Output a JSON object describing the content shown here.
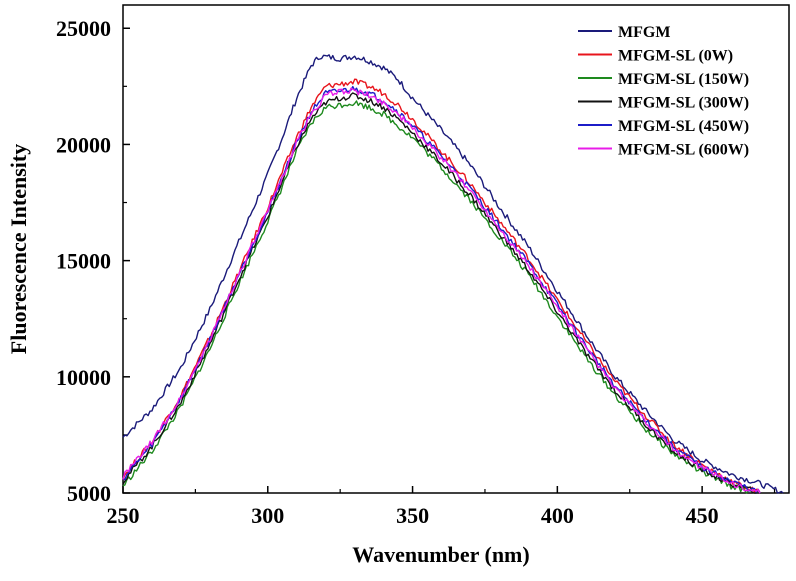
{
  "chart_data": {
    "type": "line",
    "title": "",
    "xlabel": "Wavenumber (nm)",
    "ylabel": "Fluorescence Intensity",
    "xlim": [
      250,
      480
    ],
    "ylim": [
      5000,
      26000
    ],
    "xticks": [
      250,
      300,
      350,
      400,
      450
    ],
    "yticks": [
      5000,
      10000,
      15000,
      20000,
      25000
    ],
    "grid": false,
    "legend_position": "top-right",
    "series": [
      {
        "name": "MFGM",
        "color": "#1a1a7a",
        "points": [
          [
            250,
            7400
          ],
          [
            260,
            8600
          ],
          [
            270,
            10400
          ],
          [
            280,
            12900
          ],
          [
            290,
            15800
          ],
          [
            300,
            18700
          ],
          [
            305,
            20300
          ],
          [
            310,
            22000
          ],
          [
            315,
            23400
          ],
          [
            318,
            23800
          ],
          [
            325,
            23700
          ],
          [
            330,
            23800
          ],
          [
            335,
            23600
          ],
          [
            340,
            23300
          ],
          [
            345,
            22800
          ],
          [
            350,
            22000
          ],
          [
            360,
            20600
          ],
          [
            370,
            19100
          ],
          [
            380,
            17300
          ],
          [
            390,
            15600
          ],
          [
            400,
            13700
          ],
          [
            410,
            11800
          ],
          [
            420,
            10000
          ],
          [
            430,
            8600
          ],
          [
            440,
            7300
          ],
          [
            450,
            6400
          ],
          [
            460,
            5800
          ],
          [
            470,
            5400
          ],
          [
            478,
            5000
          ]
        ]
      },
      {
        "name": "MFGM-SL (0W)",
        "color": "#e8141c",
        "points": [
          [
            250,
            5700
          ],
          [
            260,
            7200
          ],
          [
            270,
            9200
          ],
          [
            280,
            11700
          ],
          [
            290,
            14500
          ],
          [
            300,
            17300
          ],
          [
            305,
            18800
          ],
          [
            310,
            20300
          ],
          [
            315,
            21600
          ],
          [
            320,
            22500
          ],
          [
            325,
            22600
          ],
          [
            330,
            22700
          ],
          [
            335,
            22500
          ],
          [
            340,
            22200
          ],
          [
            345,
            21700
          ],
          [
            350,
            21100
          ],
          [
            360,
            19700
          ],
          [
            370,
            18300
          ],
          [
            380,
            16700
          ],
          [
            390,
            15100
          ],
          [
            400,
            13300
          ],
          [
            410,
            11500
          ],
          [
            420,
            9800
          ],
          [
            430,
            8400
          ],
          [
            440,
            7100
          ],
          [
            450,
            6200
          ],
          [
            460,
            5500
          ],
          [
            470,
            5000
          ]
        ]
      },
      {
        "name": "MFGM-SL (150W)",
        "color": "#1e8a1e",
        "points": [
          [
            250,
            5300
          ],
          [
            260,
            6800
          ],
          [
            270,
            8700
          ],
          [
            280,
            11200
          ],
          [
            290,
            14000
          ],
          [
            300,
            16700
          ],
          [
            305,
            18200
          ],
          [
            310,
            19700
          ],
          [
            315,
            20900
          ],
          [
            320,
            21600
          ],
          [
            325,
            21700
          ],
          [
            330,
            21800
          ],
          [
            335,
            21600
          ],
          [
            340,
            21300
          ],
          [
            345,
            20800
          ],
          [
            350,
            20300
          ],
          [
            360,
            19000
          ],
          [
            370,
            17600
          ],
          [
            380,
            16000
          ],
          [
            390,
            14400
          ],
          [
            400,
            12600
          ],
          [
            410,
            10800
          ],
          [
            420,
            9200
          ],
          [
            430,
            7800
          ],
          [
            440,
            6700
          ],
          [
            450,
            5900
          ],
          [
            460,
            5300
          ],
          [
            468,
            5000
          ]
        ]
      },
      {
        "name": "MFGM-SL (300W)",
        "color": "#111111",
        "points": [
          [
            250,
            5500
          ],
          [
            260,
            7000
          ],
          [
            270,
            8900
          ],
          [
            280,
            11400
          ],
          [
            290,
            14200
          ],
          [
            300,
            16900
          ],
          [
            305,
            18400
          ],
          [
            310,
            19900
          ],
          [
            315,
            21100
          ],
          [
            320,
            21800
          ],
          [
            325,
            22000
          ],
          [
            330,
            22100
          ],
          [
            335,
            21900
          ],
          [
            340,
            21600
          ],
          [
            345,
            21100
          ],
          [
            350,
            20500
          ],
          [
            360,
            19200
          ],
          [
            370,
            17800
          ],
          [
            380,
            16200
          ],
          [
            390,
            14600
          ],
          [
            400,
            12800
          ],
          [
            410,
            11000
          ],
          [
            420,
            9400
          ],
          [
            430,
            8000
          ],
          [
            440,
            6800
          ],
          [
            450,
            6000
          ],
          [
            460,
            5400
          ],
          [
            470,
            5000
          ]
        ]
      },
      {
        "name": "MFGM-SL (450W)",
        "color": "#1c1cc8",
        "points": [
          [
            250,
            5600
          ],
          [
            260,
            7100
          ],
          [
            270,
            9100
          ],
          [
            280,
            11600
          ],
          [
            290,
            14400
          ],
          [
            300,
            17100
          ],
          [
            305,
            18600
          ],
          [
            310,
            20100
          ],
          [
            315,
            21400
          ],
          [
            320,
            22200
          ],
          [
            325,
            22300
          ],
          [
            330,
            22400
          ],
          [
            335,
            22200
          ],
          [
            340,
            21900
          ],
          [
            345,
            21400
          ],
          [
            350,
            20800
          ],
          [
            360,
            19500
          ],
          [
            370,
            18100
          ],
          [
            380,
            16500
          ],
          [
            390,
            14900
          ],
          [
            400,
            13100
          ],
          [
            410,
            11300
          ],
          [
            420,
            9600
          ],
          [
            430,
            8200
          ],
          [
            440,
            7000
          ],
          [
            450,
            6100
          ],
          [
            460,
            5500
          ],
          [
            470,
            5000
          ]
        ]
      },
      {
        "name": "MFGM-SL (600W)",
        "color": "#e81ce8",
        "points": [
          [
            250,
            5700
          ],
          [
            260,
            7200
          ],
          [
            270,
            9100
          ],
          [
            280,
            11600
          ],
          [
            290,
            14400
          ],
          [
            300,
            17100
          ],
          [
            305,
            18600
          ],
          [
            310,
            20100
          ],
          [
            315,
            21300
          ],
          [
            320,
            22100
          ],
          [
            325,
            22300
          ],
          [
            330,
            22300
          ],
          [
            335,
            22100
          ],
          [
            340,
            21800
          ],
          [
            345,
            21300
          ],
          [
            350,
            20700
          ],
          [
            360,
            19400
          ],
          [
            370,
            18000
          ],
          [
            380,
            16400
          ],
          [
            390,
            14800
          ],
          [
            400,
            13000
          ],
          [
            410,
            11200
          ],
          [
            420,
            9500
          ],
          [
            430,
            8100
          ],
          [
            440,
            6900
          ],
          [
            450,
            6100
          ],
          [
            460,
            5400
          ],
          [
            470,
            5000
          ]
        ]
      }
    ]
  }
}
